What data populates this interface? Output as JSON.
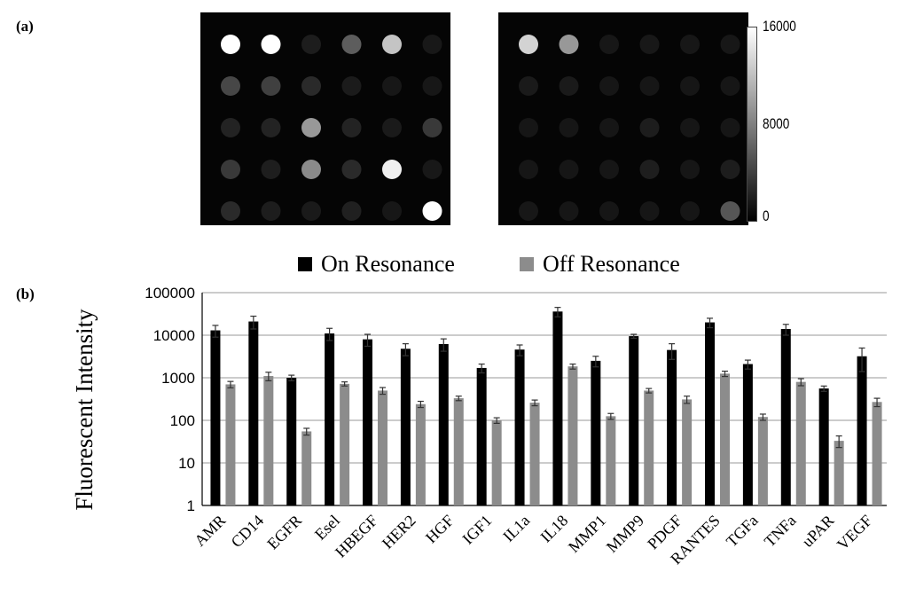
{
  "panels": {
    "a_label": "(a)",
    "b_label": "(b)"
  },
  "colorbar": {
    "ticks": [
      "16000",
      "8000",
      "0"
    ],
    "max": 16000,
    "min": 0
  },
  "arrays": {
    "on_resonance": [
      [
        16000,
        16000,
        600,
        5000,
        12000,
        300
      ],
      [
        3500,
        3000,
        1500,
        500,
        200,
        200
      ],
      [
        1000,
        1000,
        9000,
        1000,
        400,
        2500
      ],
      [
        2500,
        700,
        8000,
        1500,
        15000,
        300
      ],
      [
        1500,
        600,
        400,
        800,
        200,
        16000
      ]
    ],
    "off_resonance": [
      [
        13000,
        9000,
        200,
        300,
        200,
        200
      ],
      [
        400,
        400,
        150,
        150,
        150,
        150
      ],
      [
        150,
        150,
        150,
        600,
        150,
        150
      ],
      [
        150,
        150,
        150,
        700,
        150,
        600
      ],
      [
        200,
        150,
        150,
        150,
        150,
        4500
      ]
    ]
  },
  "chart_data": {
    "type": "bar",
    "title": "",
    "xlabel": "",
    "ylabel": "Fluorescent Intensity",
    "yscale": "log",
    "ylim": [
      1,
      100000
    ],
    "yticks": [
      "1",
      "10",
      "100",
      "1000",
      "10000",
      "100000"
    ],
    "grid": true,
    "legend_placement": "top-center",
    "categories": [
      "AMR",
      "CD14",
      "EGFR",
      "Esel",
      "HBEGF",
      "HER2",
      "HGF",
      "IGF1",
      "IL1a",
      "IL18",
      "MMP1",
      "MMP9",
      "PDGF",
      "RANTES",
      "TGFa",
      "TNFa",
      "uPAR",
      "VEGF"
    ],
    "series": [
      {
        "name": "On Resonance",
        "color": "#000000",
        "values": [
          13000,
          21000,
          1000,
          11000,
          8000,
          4800,
          6200,
          1700,
          4600,
          36000,
          2500,
          9500,
          4500,
          20000,
          2100,
          14000,
          560,
          3200
        ],
        "error": [
          4000,
          7000,
          150,
          3500,
          2500,
          1500,
          2000,
          400,
          1300,
          9000,
          700,
          1000,
          1800,
          5000,
          500,
          4000,
          80,
          1800
        ]
      },
      {
        "name": "Off Resonance",
        "color": "#8c8c8c",
        "values": [
          700,
          1100,
          55,
          720,
          500,
          240,
          330,
          100,
          260,
          1850,
          125,
          500,
          310,
          1250,
          120,
          800,
          33,
          270
        ],
        "error": [
          120,
          250,
          10,
          80,
          90,
          40,
          40,
          15,
          40,
          250,
          20,
          60,
          60,
          180,
          20,
          150,
          10,
          60
        ]
      }
    ]
  }
}
